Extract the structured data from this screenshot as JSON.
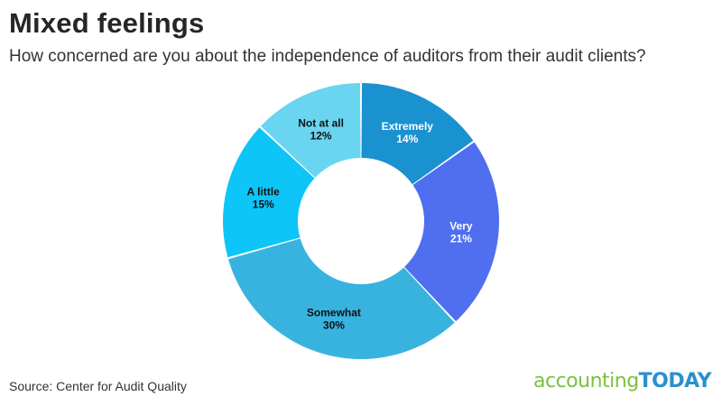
{
  "title": "Mixed feelings",
  "subtitle": "How concerned are you about the independence of auditors from their audit clients?",
  "source": "Source: Center for Audit Quality",
  "logo": {
    "part1": "accounting",
    "part2": "TODAY"
  },
  "chart_data": {
    "type": "pie",
    "donut": true,
    "categories": [
      "Extremely",
      "Very",
      "Somewhat",
      "A little",
      "Not at all"
    ],
    "values": [
      14,
      21,
      30,
      15,
      12
    ],
    "value_labels": [
      "14%",
      "21%",
      "30%",
      "15%",
      "12%"
    ],
    "colors": [
      "#1a92d0",
      "#4f6ff0",
      "#38b3e0",
      "#0dc6f7",
      "#6ad5f0"
    ],
    "label_colors": [
      "#ffffff",
      "#ffffff",
      "#111111",
      "#111111",
      "#111111"
    ]
  }
}
